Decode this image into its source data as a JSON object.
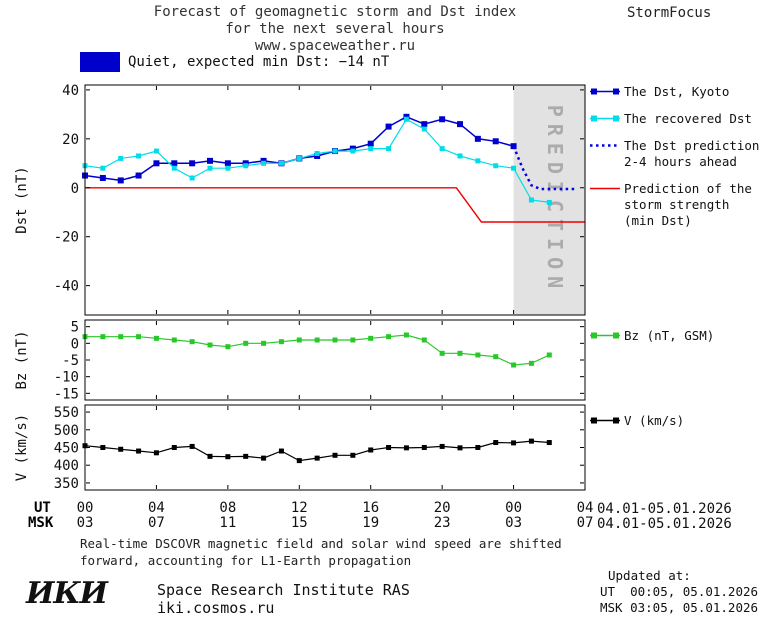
{
  "header": {
    "title_line1": "Forecast of geomagnetic storm and Dst index",
    "title_line2": "for the next several hours",
    "site_url": "www.spaceweather.ru",
    "brand": "StormFocus"
  },
  "status": {
    "text": "Quiet, expected min Dst: −14 nT",
    "swatch_color": "#0000cc"
  },
  "chart_data": [
    {
      "id": "dst",
      "type": "line",
      "ylabel": "Dst (nT)",
      "xlim": [
        0,
        28
      ],
      "ylim": [
        -52,
        42
      ],
      "yticks": [
        40,
        20,
        0,
        -20,
        -40
      ],
      "xticks": [
        0,
        4,
        8,
        12,
        16,
        20,
        24,
        28
      ],
      "prediction_zone": {
        "from": 24,
        "to": 28,
        "label": "PREDICTION",
        "fill": "#e2e2e2",
        "text_color": "#ababab"
      },
      "series": [
        {
          "id": "kyoto",
          "name": "The Dst, Kyoto",
          "color": "#0000cc",
          "style": "solid",
          "marker": "square",
          "msize": 6,
          "width": 1.5,
          "x": [
            0,
            1,
            2,
            3,
            4,
            5,
            6,
            7,
            8,
            9,
            10,
            11,
            12,
            13,
            14,
            15,
            16,
            17,
            18,
            19,
            20,
            21,
            22,
            23,
            24
          ],
          "y": [
            5,
            4,
            3,
            5,
            10,
            10,
            10,
            11,
            10,
            10,
            11,
            10,
            12,
            13,
            15,
            16,
            18,
            25,
            29,
            26,
            28,
            26,
            20,
            19,
            17
          ]
        },
        {
          "id": "recovered",
          "name": "The recovered Dst",
          "color": "#00dde8",
          "style": "solid",
          "marker": "square",
          "msize": 5,
          "width": 1.2,
          "x": [
            0,
            1,
            2,
            3,
            4,
            5,
            6,
            7,
            8,
            9,
            10,
            11,
            12,
            13,
            14,
            15,
            16,
            17,
            18,
            19,
            20,
            21,
            22,
            23,
            24,
            25,
            26
          ],
          "y": [
            9,
            8,
            12,
            13,
            15,
            8,
            4,
            8,
            8,
            9,
            10,
            10,
            12,
            14,
            15,
            15,
            16,
            16,
            28,
            24,
            16,
            13,
            11,
            9,
            8,
            -5,
            -6
          ]
        },
        {
          "id": "dst-prediction",
          "name": "The Dst prediction 2-4 hours ahead",
          "color": "#0000ee",
          "style": "dotted",
          "marker": "none",
          "width": 2.5,
          "x": [
            24,
            24.5,
            25,
            25.5,
            26,
            26.5,
            27,
            27.4
          ],
          "y": [
            17,
            8,
            1,
            -0.5,
            -0.5,
            -0.5,
            -0.5,
            -0.5
          ]
        },
        {
          "id": "storm-strength",
          "name": "Prediction of the storm strength (min Dst)",
          "color": "#ee0000",
          "style": "solid",
          "marker": "none",
          "width": 1.4,
          "x": [
            0,
            20.8,
            22.2,
            28
          ],
          "y": [
            0,
            0,
            -14,
            -14
          ]
        }
      ]
    },
    {
      "id": "bz",
      "type": "line",
      "ylabel": "Bz (nT)",
      "xlim": [
        0,
        28
      ],
      "ylim": [
        -17,
        7
      ],
      "yticks": [
        5,
        0,
        -5,
        -10,
        -15
      ],
      "xticks": [
        0,
        4,
        8,
        12,
        16,
        20,
        24,
        28
      ],
      "series": [
        {
          "id": "bz",
          "name": "Bz (nT, GSM)",
          "color": "#28c828",
          "style": "solid",
          "marker": "square",
          "msize": 5,
          "width": 1.2,
          "x": [
            0,
            1,
            2,
            3,
            4,
            5,
            6,
            7,
            8,
            9,
            10,
            11,
            12,
            13,
            14,
            15,
            16,
            17,
            18,
            19,
            20,
            21,
            22,
            23,
            24,
            25,
            26
          ],
          "y": [
            2,
            2,
            2,
            2,
            1.5,
            1,
            0.5,
            -0.5,
            -1,
            0,
            0,
            0.5,
            1,
            1,
            1,
            1,
            1.5,
            2,
            2.5,
            1,
            -3,
            -3,
            -3.5,
            -4,
            -6.5,
            -6,
            -3.5
          ]
        }
      ]
    },
    {
      "id": "v",
      "type": "line",
      "ylabel": "V (km/s)",
      "xlim": [
        0,
        28
      ],
      "ylim": [
        330,
        570
      ],
      "yticks": [
        550,
        500,
        450,
        400,
        350
      ],
      "xticks": [
        0,
        4,
        8,
        12,
        16,
        20,
        24,
        28
      ],
      "series": [
        {
          "id": "v",
          "name": "V (km/s)",
          "color": "#000000",
          "style": "solid",
          "marker": "square",
          "msize": 5,
          "width": 1.2,
          "x": [
            0,
            1,
            2,
            3,
            4,
            5,
            6,
            7,
            8,
            9,
            10,
            11,
            12,
            13,
            14,
            15,
            16,
            17,
            18,
            19,
            20,
            21,
            22,
            23,
            24,
            25,
            26
          ],
          "y": [
            455,
            450,
            445,
            440,
            435,
            450,
            453,
            425,
            424,
            425,
            420,
            440,
            413,
            420,
            428,
            428,
            443,
            450,
            449,
            450,
            453,
            449,
            450,
            464,
            463,
            468,
            464
          ]
        }
      ]
    }
  ],
  "xaxis": {
    "ut_label": "UT",
    "msk_label": "MSK",
    "hours": [
      0,
      4,
      8,
      12,
      16,
      20,
      24,
      28
    ],
    "ut_ticks": [
      "00",
      "04",
      "08",
      "12",
      "16",
      "20",
      "00",
      "04"
    ],
    "msk_ticks": [
      "03",
      "07",
      "11",
      "15",
      "19",
      "23",
      "03",
      "07"
    ],
    "ut_date": "04.01-05.01.2026",
    "msk_date": "04.01-05.01.2026"
  },
  "legend": {
    "dst": [
      {
        "id": "kyoto",
        "color": "#0000cc",
        "style": "solid-squares",
        "lines": [
          "The Dst, Kyoto"
        ]
      },
      {
        "id": "recovered",
        "color": "#00dde8",
        "style": "solid-squares",
        "lines": [
          "The recovered Dst"
        ]
      },
      {
        "id": "dst-prediction",
        "color": "#0000ee",
        "style": "dotted",
        "lines": [
          "The Dst prediction",
          "2-4 hours ahead"
        ]
      },
      {
        "id": "storm-strength",
        "color": "#ee0000",
        "style": "solid",
        "lines": [
          "Prediction of the",
          "storm strength",
          "(min Dst)"
        ]
      }
    ],
    "bz": [
      {
        "id": "bz",
        "color": "#28c828",
        "style": "solid-squares",
        "lines": [
          "Bz (nT, GSM)"
        ]
      }
    ],
    "v": [
      {
        "id": "v",
        "color": "#000000",
        "style": "solid-squares",
        "lines": [
          "V (km/s)"
        ]
      }
    ]
  },
  "note": {
    "line1": "Real-time DSCOVR magnetic field and solar wind speed are shifted",
    "line2": "forward, accounting for L1-Earth propagation"
  },
  "updated": {
    "label": "Updated at:",
    "ut": "UT  00:05, 05.01.2026",
    "msk": "MSK 03:05, 05.01.2026"
  },
  "footer": {
    "logo": "ИКИ",
    "institute": "Space Research Institute RAS",
    "institute_url": "iki.cosmos.ru"
  }
}
